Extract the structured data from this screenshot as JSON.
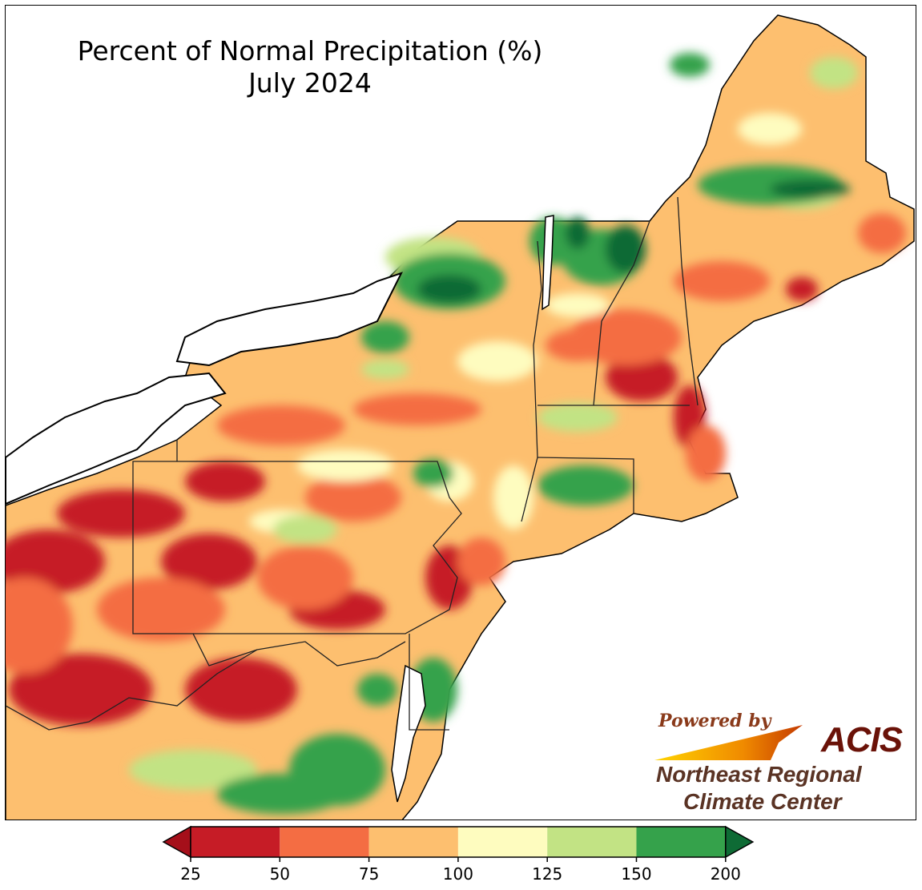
{
  "title": {
    "line1": "Percent of Normal Precipitation (%)",
    "line2": "July 2024"
  },
  "branding": {
    "powered_by": "Powered by",
    "acis": "ACIS",
    "org_line1": "Northeast Regional",
    "org_line2": "Climate Center"
  },
  "legend": {
    "ticks": [
      "25",
      "50",
      "75",
      "100",
      "125",
      "150",
      "200"
    ],
    "colors": [
      "#c61c26",
      "#f46d43",
      "#fdbf6f",
      "#fefcbf",
      "#c2e384",
      "#35a24b",
      "#0e7a3a"
    ],
    "extend": "both"
  },
  "map": {
    "region": "Northeastern United States",
    "colors": {
      "lt25": "#a50f1a",
      "25-50": "#c61c26",
      "50-75": "#f46d43",
      "75-100": "#fdbf6f",
      "100-125": "#fefcbf",
      "125-150": "#c2e384",
      "150-200": "#35a24b",
      "gt200": "#0e6b35"
    }
  }
}
